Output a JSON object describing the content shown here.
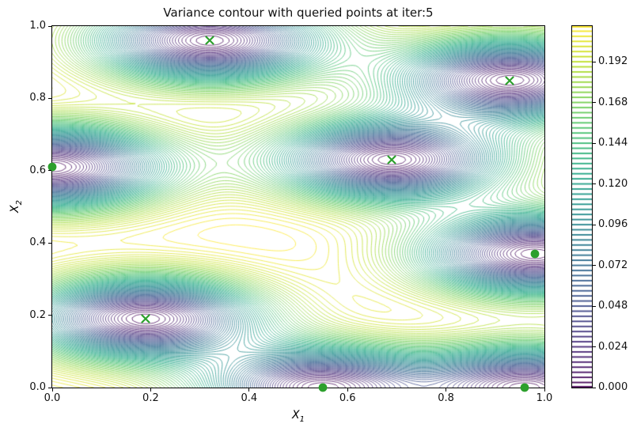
{
  "figure": {
    "title": "Variance contour with queried points at iter:5",
    "iteration": 5,
    "background": "#ffffff"
  },
  "chart_data": {
    "type": "contour",
    "title": "Variance contour with queried points at iter:5",
    "xlabel_base": "X",
    "xlabel_sub": "1",
    "ylabel_base": "X",
    "ylabel_sub": "2",
    "xlim": [
      0,
      1
    ],
    "ylim": [
      0,
      1
    ],
    "x_ticks": [
      "0.0",
      "0.2",
      "0.4",
      "0.6",
      "0.8",
      "1.0"
    ],
    "y_ticks": [
      "0.0",
      "0.2",
      "0.4",
      "0.6",
      "0.8",
      "1.0"
    ],
    "grid": false,
    "colormap": "viridis",
    "colormap_stops": [
      "#440154",
      "#482475",
      "#414487",
      "#355f8d",
      "#2a788e",
      "#21918c",
      "#22a884",
      "#44bf70",
      "#7ad151",
      "#bddf26",
      "#fde725"
    ],
    "levels": {
      "min": 0.0,
      "max": 0.213,
      "step": 0.003
    },
    "colorbar_ticks": [
      "0.000",
      "0.024",
      "0.048",
      "0.072",
      "0.096",
      "0.120",
      "0.144",
      "0.168",
      "0.192"
    ],
    "queried_points": {
      "marker_color": "#2ca02c",
      "crosses": [
        [
          0.32,
          0.96
        ],
        [
          0.93,
          0.85
        ],
        [
          0.69,
          0.63
        ],
        [
          0.19,
          0.19
        ]
      ],
      "dots": [
        [
          0.0,
          0.61
        ],
        [
          0.98,
          0.37
        ],
        [
          0.55,
          0.0
        ],
        [
          0.96,
          0.0
        ]
      ]
    },
    "field_model": {
      "kind": "gp_posterior_variance_rbf",
      "lengthscale_x": 0.24,
      "lengthscale_y": 0.115,
      "signal_variance": 0.22,
      "jitter": 1e-08
    }
  }
}
